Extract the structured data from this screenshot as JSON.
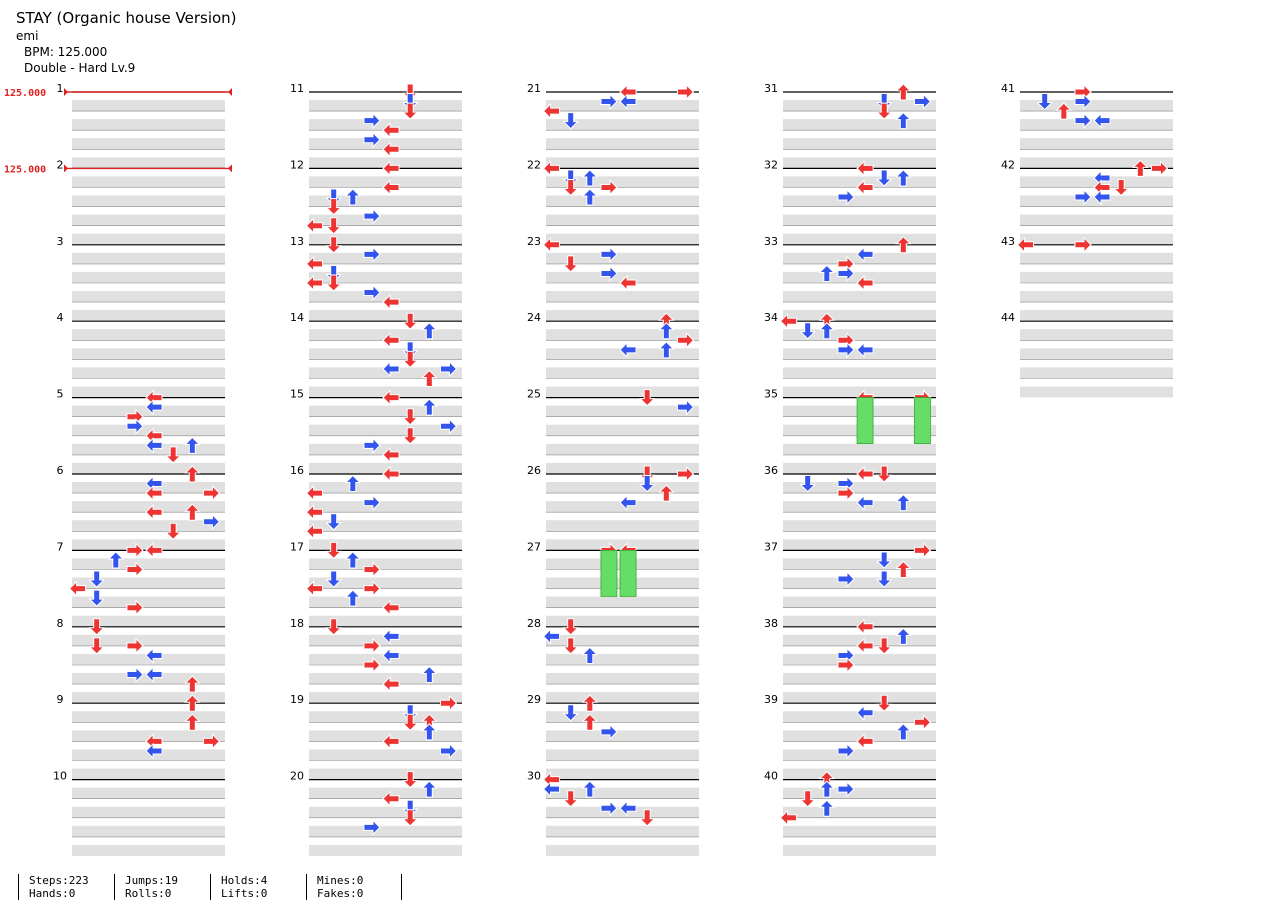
{
  "song": {
    "title": "STAY (Organic house Version)",
    "artist": "emi",
    "bpm_line": "BPM: 125.000",
    "difficulty_line": "Double - Hard Lv.9"
  },
  "bpm_changes": [
    {
      "measure": 1,
      "label": "125.000"
    },
    {
      "measure": 2,
      "label": "125.000"
    }
  ],
  "chart_data": {
    "type": "step-chart",
    "measures_total": 44,
    "columns": [
      {
        "measures": [
          1,
          2,
          3,
          4,
          5,
          6,
          7,
          8,
          9,
          10
        ]
      },
      {
        "measures": [
          11,
          12,
          13,
          14,
          15,
          16,
          17,
          18,
          19,
          20
        ]
      },
      {
        "measures": [
          21,
          22,
          23,
          24,
          25,
          26,
          27,
          28,
          29,
          30
        ]
      },
      {
        "measures": [
          31,
          32,
          33,
          34,
          35,
          36,
          37,
          38,
          39,
          40
        ]
      },
      {
        "measures": [
          41,
          42,
          43,
          44
        ]
      }
    ],
    "colors": {
      "quarter": "#ee3333",
      "eighth": "#3355ee",
      "hold": "#66dd66"
    },
    "notes": [
      {
        "m": 5,
        "b": 0,
        "l": 4,
        "q": "q"
      },
      {
        "m": 5,
        "b": 0.5,
        "l": 4,
        "q": "e"
      },
      {
        "m": 5,
        "b": 1,
        "l": 3,
        "q": "q"
      },
      {
        "m": 5,
        "b": 1.5,
        "l": 3,
        "q": "e"
      },
      {
        "m": 5,
        "b": 2,
        "l": 4,
        "q": "q"
      },
      {
        "m": 5,
        "b": 2.5,
        "l": 6,
        "q": "e"
      },
      {
        "m": 5,
        "b": 2.5,
        "l": 4,
        "q": "e"
      },
      {
        "m": 5,
        "b": 3,
        "l": 5,
        "q": "q"
      },
      {
        "m": 6,
        "b": 0,
        "l": 6,
        "q": "q"
      },
      {
        "m": 6,
        "b": 0.5,
        "l": 4,
        "q": "e"
      },
      {
        "m": 6,
        "b": 1,
        "l": 4,
        "q": "q"
      },
      {
        "m": 6,
        "b": 1,
        "l": 7,
        "q": "q"
      },
      {
        "m": 6,
        "b": 2,
        "l": 6,
        "q": "q"
      },
      {
        "m": 6,
        "b": 2.5,
        "l": 7,
        "q": "e"
      },
      {
        "m": 6,
        "b": 2,
        "l": 4,
        "q": "q"
      },
      {
        "m": 6,
        "b": 3,
        "l": 5,
        "q": "q"
      },
      {
        "m": 7,
        "b": 0,
        "l": 3,
        "q": "q"
      },
      {
        "m": 7,
        "b": 0,
        "l": 4,
        "q": "q"
      },
      {
        "m": 7,
        "b": 0.5,
        "l": 2,
        "q": "e"
      },
      {
        "m": 7,
        "b": 1,
        "l": 3,
        "q": "q"
      },
      {
        "m": 7,
        "b": 1.5,
        "l": 1,
        "q": "e"
      },
      {
        "m": 7,
        "b": 2,
        "l": 0,
        "q": "q"
      },
      {
        "m": 7,
        "b": 2.5,
        "l": 1,
        "q": "e"
      },
      {
        "m": 7,
        "b": 3,
        "l": 3,
        "q": "q"
      },
      {
        "m": 8,
        "b": 0,
        "l": 1,
        "q": "q"
      },
      {
        "m": 8,
        "b": 1,
        "l": 1,
        "q": "q"
      },
      {
        "m": 8,
        "b": 1,
        "l": 3,
        "q": "q"
      },
      {
        "m": 8,
        "b": 1.5,
        "l": 4,
        "q": "e"
      },
      {
        "m": 8,
        "b": 2.5,
        "l": 3,
        "q": "e"
      },
      {
        "m": 8,
        "b": 2.5,
        "l": 4,
        "q": "e"
      },
      {
        "m": 8,
        "b": 3,
        "l": 6,
        "q": "q"
      },
      {
        "m": 9,
        "b": 0,
        "l": 6,
        "q": "q"
      },
      {
        "m": 9,
        "b": 1,
        "l": 6,
        "q": "q"
      },
      {
        "m": 9,
        "b": 2,
        "l": 4,
        "q": "q"
      },
      {
        "m": 9,
        "b": 2,
        "l": 7,
        "q": "q"
      },
      {
        "m": 9,
        "b": 2.5,
        "l": 4,
        "q": "e"
      }
    ],
    "column_notes": {
      "11": [
        [
          0,
          5
        ],
        [
          0.5,
          5
        ],
        [
          1,
          5
        ],
        [
          1.5,
          3
        ],
        [
          2,
          4
        ],
        [
          2.5,
          3
        ],
        [
          3,
          4
        ]
      ],
      "12": [
        [
          0,
          4
        ],
        [
          1,
          4
        ],
        [
          1.5,
          1
        ],
        [
          1.5,
          2
        ],
        [
          2,
          1
        ],
        [
          2.5,
          3
        ],
        [
          3,
          0
        ],
        [
          3,
          1
        ]
      ],
      "13": [
        [
          0,
          1
        ],
        [
          0.5,
          3
        ],
        [
          1,
          0
        ],
        [
          1.5,
          1
        ],
        [
          2,
          0
        ],
        [
          2,
          1
        ],
        [
          2.5,
          3
        ],
        [
          3,
          4
        ]
      ],
      "14": [
        [
          0,
          5
        ],
        [
          0.5,
          6
        ],
        [
          1,
          4
        ],
        [
          1.5,
          5
        ],
        [
          2,
          5
        ],
        [
          2.5,
          4
        ],
        [
          2.5,
          7
        ],
        [
          3,
          6
        ]
      ],
      "15": [
        [
          0,
          4
        ],
        [
          0.5,
          6
        ],
        [
          1,
          5
        ],
        [
          1.5,
          7
        ],
        [
          2,
          5
        ],
        [
          2.5,
          3
        ],
        [
          3,
          4
        ]
      ],
      "16": [
        [
          0,
          4
        ],
        [
          0.5,
          2
        ],
        [
          1,
          0
        ],
        [
          1.5,
          3
        ],
        [
          2,
          0
        ],
        [
          2.5,
          1
        ],
        [
          3,
          0
        ]
      ],
      "17": [
        [
          0,
          1
        ],
        [
          0.5,
          2
        ],
        [
          1,
          3
        ],
        [
          1.5,
          1
        ],
        [
          2,
          0
        ],
        [
          2,
          3
        ],
        [
          2.5,
          2
        ],
        [
          3,
          4
        ]
      ],
      "18": [
        [
          0,
          1
        ],
        [
          0.5,
          4
        ],
        [
          1,
          3
        ],
        [
          1.5,
          4
        ],
        [
          2,
          3
        ],
        [
          2.5,
          6
        ],
        [
          3,
          4
        ]
      ],
      "19": [
        [
          0,
          7
        ],
        [
          0.5,
          5
        ],
        [
          1,
          6
        ],
        [
          1,
          5
        ],
        [
          1.5,
          6
        ],
        [
          2,
          4
        ],
        [
          2.5,
          7
        ]
      ],
      "20": [
        [
          0,
          5
        ],
        [
          0.5,
          6
        ],
        [
          1,
          4
        ],
        [
          1.5,
          5
        ],
        [
          2,
          5
        ],
        [
          2.5,
          3
        ]
      ]
    }
  },
  "stats": [
    {
      "top": "Steps:223",
      "bottom": "Hands:0"
    },
    {
      "top": "Jumps:19",
      "bottom": "Rolls:0"
    },
    {
      "top": "Holds:4",
      "bottom": "Lifts:0"
    },
    {
      "top": "Mines:0",
      "bottom": "Fakes:0"
    }
  ]
}
